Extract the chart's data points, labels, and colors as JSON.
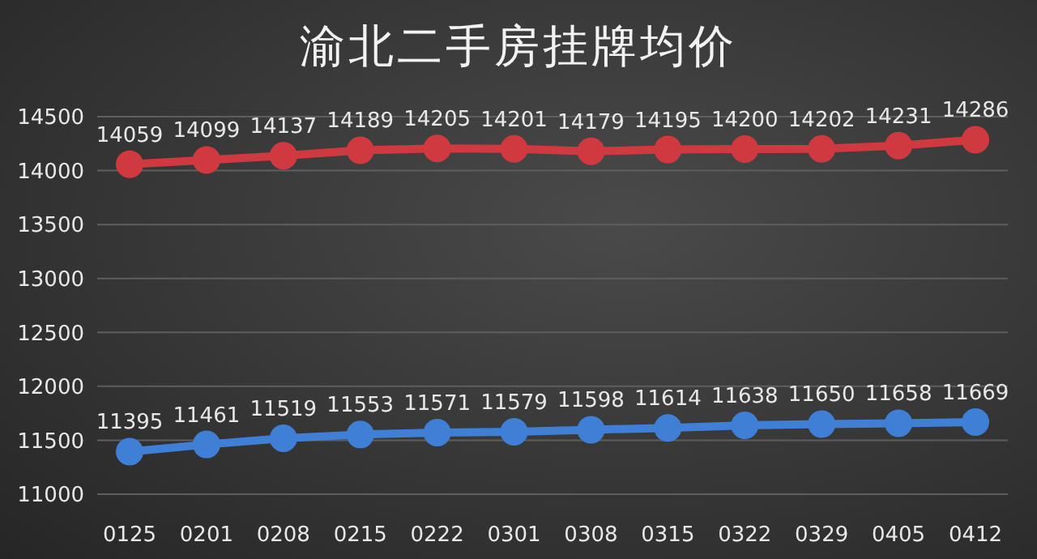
{
  "chart_data": {
    "type": "line",
    "title": "渝北二手房挂牌均价",
    "categories": [
      "0125",
      "0201",
      "0208",
      "0215",
      "0222",
      "0301",
      "0308",
      "0315",
      "0322",
      "0329",
      "0405",
      "0412"
    ],
    "series": [
      {
        "color": "#d0393f",
        "values": [
          14059,
          14099,
          14137,
          14189,
          14205,
          14201,
          14179,
          14195,
          14200,
          14202,
          14231,
          14286
        ]
      },
      {
        "color": "#3f7fd6",
        "values": [
          11395,
          11461,
          11519,
          11553,
          11571,
          11579,
          11598,
          11614,
          11638,
          11650,
          11658,
          11669
        ]
      }
    ],
    "ylim": [
      11000,
      14500
    ],
    "yticks": [
      11000,
      11500,
      12000,
      12500,
      13000,
      13500,
      14000,
      14500
    ],
    "grid": "y",
    "marker": "circle",
    "data_labels": true
  }
}
